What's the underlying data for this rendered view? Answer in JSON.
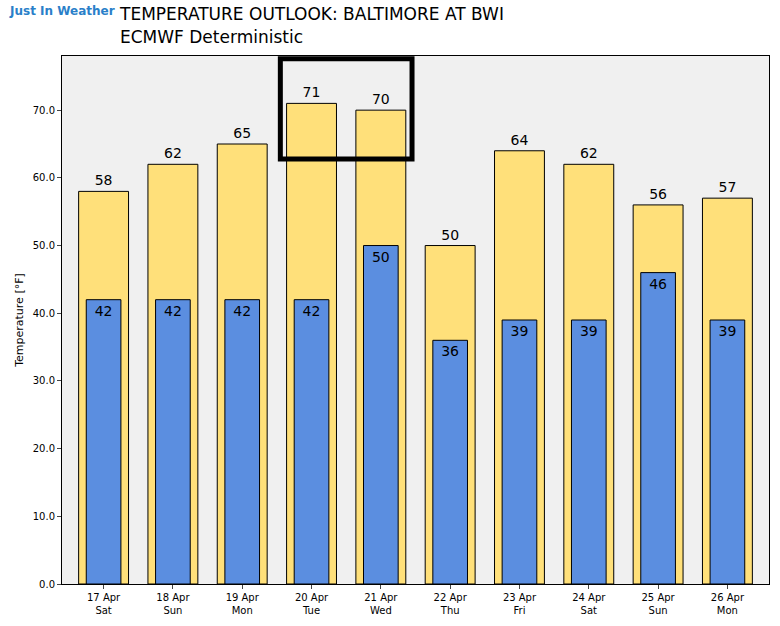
{
  "chart_data": {
    "type": "bar",
    "title": "TEMPERATURE OUTLOOK: BALTIMORE AT BWI",
    "subtitle": "ECMWF Deterministic",
    "annotations": [
      "Just In Weather"
    ],
    "y_label": "Temperature [°F]",
    "categories": [
      "17 Apr\nSat",
      "18 Apr\nSun",
      "19 Apr\nMon",
      "20 Apr\nTue",
      "21 Apr\nWed",
      "22 Apr\nThu",
      "23 Apr\nFri",
      "24 Apr\nSat",
      "25 Apr\nSun",
      "26 Apr\nMon"
    ],
    "series": [
      {
        "color": "#ffe07a",
        "values": [
          58,
          62,
          65,
          71,
          70,
          50,
          64,
          62,
          56,
          57
        ]
      },
      {
        "color": "#5b8ee0",
        "values": [
          42,
          42,
          42,
          42,
          50,
          36,
          39,
          39,
          46,
          39
        ]
      }
    ],
    "ylim": [
      0,
      78
    ],
    "yticks": [
      {
        "value": 0,
        "label": "0.0"
      },
      {
        "value": 10,
        "label": "10.0"
      },
      {
        "value": 20,
        "label": "20.0"
      },
      {
        "value": 30,
        "label": "30.0"
      },
      {
        "value": 40,
        "label": "40.0"
      },
      {
        "value": 50,
        "label": "50.0"
      },
      {
        "value": 60,
        "label": "60.0"
      },
      {
        "value": 70,
        "label": "70.0"
      }
    ],
    "grid": false,
    "data_labels": true
  }
}
